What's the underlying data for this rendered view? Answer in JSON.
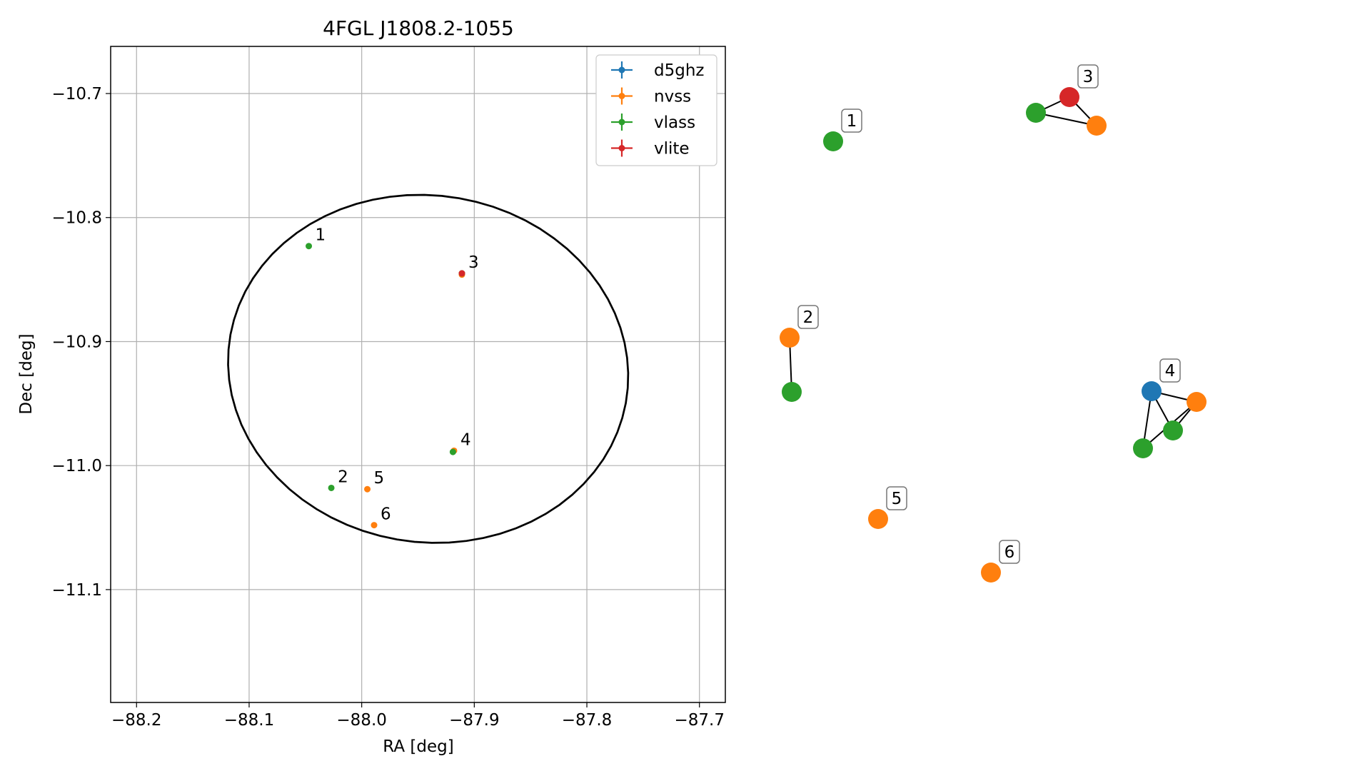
{
  "chart_data": [
    {
      "type": "scatter",
      "title": "4FGL J1808.2-1055",
      "xlabel": "RA [deg]",
      "ylabel": "Dec [deg]",
      "xlim": [
        -88.223,
        -87.677
      ],
      "ylim": [
        -11.191,
        -10.662
      ],
      "xticks": [
        -88.2,
        -88.1,
        -88.0,
        -87.9,
        -87.8,
        -87.7
      ],
      "xtick_labels": [
        "−88.2",
        "−88.1",
        "−88.0",
        "−87.9",
        "−87.8",
        "−87.7"
      ],
      "yticks": [
        -10.7,
        -10.8,
        -10.9,
        -11.0,
        -11.1
      ],
      "ytick_labels": [
        "−10.7",
        "−10.8",
        "−10.9",
        "−11.0",
        "−11.1"
      ],
      "grid": true,
      "legend_position": "top-right",
      "series": [
        {
          "name": "d5ghz",
          "color": "#1f77b4",
          "points": []
        },
        {
          "name": "nvss",
          "color": "#ff7f0e",
          "points": [
            {
              "x": -87.995,
              "y": -11.019
            },
            {
              "x": -87.989,
              "y": -11.048
            },
            {
              "x": -87.918,
              "y": -10.988
            },
            {
              "x": -87.911,
              "y": -10.846
            }
          ]
        },
        {
          "name": "vlass",
          "color": "#2ca02c",
          "points": [
            {
              "x": -88.047,
              "y": -10.823
            },
            {
              "x": -88.027,
              "y": -11.018
            },
            {
              "x": -87.919,
              "y": -10.989
            },
            {
              "x": -87.911,
              "y": -10.845
            }
          ]
        },
        {
          "name": "vlite",
          "color": "#d62728",
          "points": [
            {
              "x": -87.911,
              "y": -10.845
            }
          ]
        }
      ],
      "annotations": [
        {
          "text": "1",
          "x": -88.047,
          "y": -10.823
        },
        {
          "text": "2",
          "x": -88.027,
          "y": -11.018
        },
        {
          "text": "3",
          "x": -87.911,
          "y": -10.845
        },
        {
          "text": "4",
          "x": -87.918,
          "y": -10.988
        },
        {
          "text": "5",
          "x": -87.995,
          "y": -11.019
        },
        {
          "text": "6",
          "x": -87.989,
          "y": -11.048
        }
      ],
      "ellipse": {
        "center": {
          "x": -87.941,
          "y": -10.922
        },
        "semi_axis_x": 0.178,
        "semi_axis_y": 0.14,
        "angle_deg": -5
      }
    },
    {
      "type": "network",
      "nodes": [
        {
          "id": "n1",
          "series": "vlass",
          "color": "#2ca02c",
          "x": 0.0,
          "y": 0.0
        },
        {
          "id": "n2",
          "series": "nvss",
          "color": "#ff7f0e",
          "x": -61,
          "y": -275
        },
        {
          "id": "n3",
          "series": "vlass",
          "color": "#2ca02c",
          "x": -58,
          "y": -351
        },
        {
          "id": "n4",
          "series": "vlite",
          "color": "#d62728",
          "x": 331,
          "y": 62
        },
        {
          "id": "n5",
          "series": "vlass",
          "color": "#2ca02c",
          "x": 284,
          "y": 40
        },
        {
          "id": "n6",
          "series": "nvss",
          "color": "#ff7f0e",
          "x": 369,
          "y": 22
        },
        {
          "id": "n7",
          "series": "d5ghz",
          "color": "#1f77b4",
          "x": 446,
          "y": -350
        },
        {
          "id": "n8",
          "series": "nvss",
          "color": "#ff7f0e",
          "x": 509,
          "y": -365
        },
        {
          "id": "n9",
          "series": "vlass",
          "color": "#2ca02c",
          "x": 476,
          "y": -405
        },
        {
          "id": "n10",
          "series": "vlass",
          "color": "#2ca02c",
          "x": 434,
          "y": -430
        },
        {
          "id": "n11",
          "series": "nvss",
          "color": "#ff7f0e",
          "x": 63,
          "y": -529
        },
        {
          "id": "n12",
          "series": "nvss",
          "color": "#ff7f0e",
          "x": 221,
          "y": -604
        }
      ],
      "edges": [
        [
          "n2",
          "n3"
        ],
        [
          "n5",
          "n4"
        ],
        [
          "n5",
          "n6"
        ],
        [
          "n4",
          "n6"
        ],
        [
          "n7",
          "n8"
        ],
        [
          "n7",
          "n9"
        ],
        [
          "n7",
          "n10"
        ],
        [
          "n8",
          "n9"
        ],
        [
          "n8",
          "n10"
        ]
      ],
      "labels": [
        {
          "text": "1",
          "node": "n1"
        },
        {
          "text": "2",
          "node": "n2"
        },
        {
          "text": "3",
          "node": "n4"
        },
        {
          "text": "4",
          "node": "n7"
        },
        {
          "text": "5",
          "node": "n11"
        },
        {
          "text": "6",
          "node": "n12"
        }
      ]
    }
  ]
}
